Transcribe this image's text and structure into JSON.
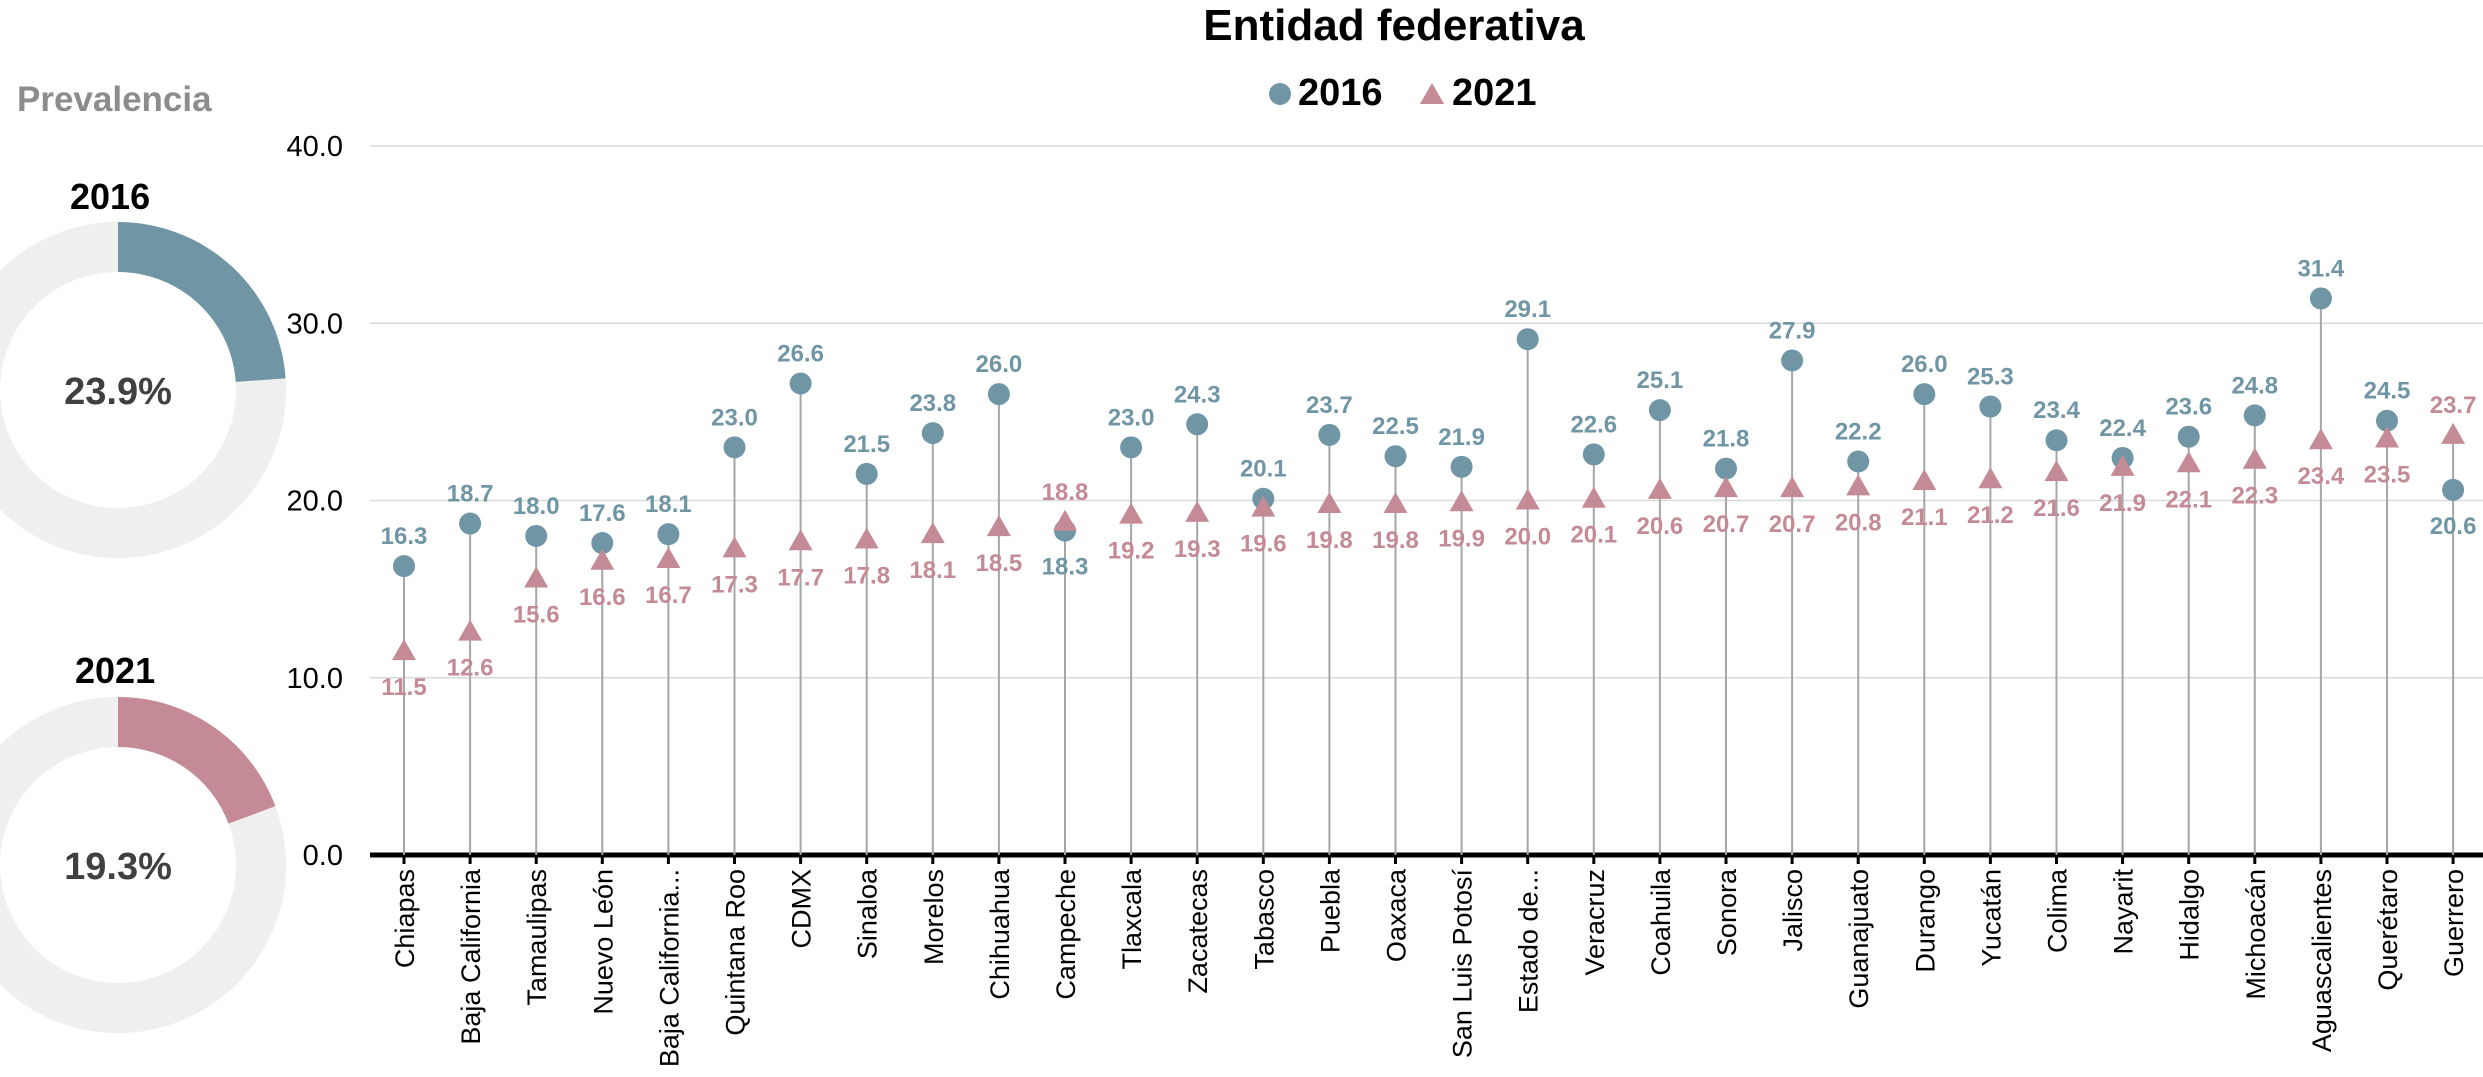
{
  "panel": {
    "label": "Prevalencia",
    "donuts": [
      {
        "year": "2016",
        "value": 23.9,
        "value_label": "23.9%",
        "color": "#7096a6"
      },
      {
        "year": "2021",
        "value": 19.3,
        "value_label": "19.3%",
        "color": "#c48b96"
      }
    ]
  },
  "chart_data": {
    "type": "scatter",
    "title": "Entidad federativa",
    "ylim": [
      0,
      40
    ],
    "yticks": [
      "0.0",
      "10.0",
      "20.0",
      "30.0",
      "40.0"
    ],
    "grid": true,
    "legend_position": "top-center",
    "categories": [
      "Chiapas",
      "Baja California",
      "Tamaulipas",
      "Nuevo León",
      "Baja California...",
      "Quintana Roo",
      "CDMX",
      "Sinaloa",
      "Morelos",
      "Chihuahua",
      "Campeche",
      "Tlaxcala",
      "Zacatecas",
      "Tabasco",
      "Puebla",
      "Oaxaca",
      "San Luis Potosí",
      "Estado de...",
      "Veracruz",
      "Coahuila",
      "Sonora",
      "Jalisco",
      "Guanajuato",
      "Durango",
      "Yucatán",
      "Colima",
      "Nayarit",
      "Hidalgo",
      "Michoacán",
      "Aguascalientes",
      "Querétaro",
      "Guerrero"
    ],
    "series": [
      {
        "name": "2016",
        "marker": "circle",
        "color": "#7096a6",
        "values": [
          16.3,
          18.7,
          18.0,
          17.6,
          18.1,
          23.0,
          26.6,
          21.5,
          23.8,
          26.0,
          18.3,
          23.0,
          24.3,
          20.1,
          23.7,
          22.5,
          21.9,
          29.1,
          22.6,
          25.1,
          21.8,
          27.9,
          22.2,
          26.0,
          25.3,
          23.4,
          22.4,
          23.6,
          24.8,
          31.4,
          24.5,
          20.6
        ]
      },
      {
        "name": "2021",
        "marker": "triangle",
        "color": "#c48b96",
        "values": [
          11.5,
          12.6,
          15.6,
          16.6,
          16.7,
          17.3,
          17.7,
          17.8,
          18.1,
          18.5,
          18.8,
          19.2,
          19.3,
          19.6,
          19.8,
          19.8,
          19.9,
          20.0,
          20.1,
          20.6,
          20.7,
          20.7,
          20.8,
          21.1,
          21.2,
          21.6,
          21.9,
          22.1,
          22.3,
          23.4,
          23.5,
          23.7
        ]
      }
    ]
  }
}
